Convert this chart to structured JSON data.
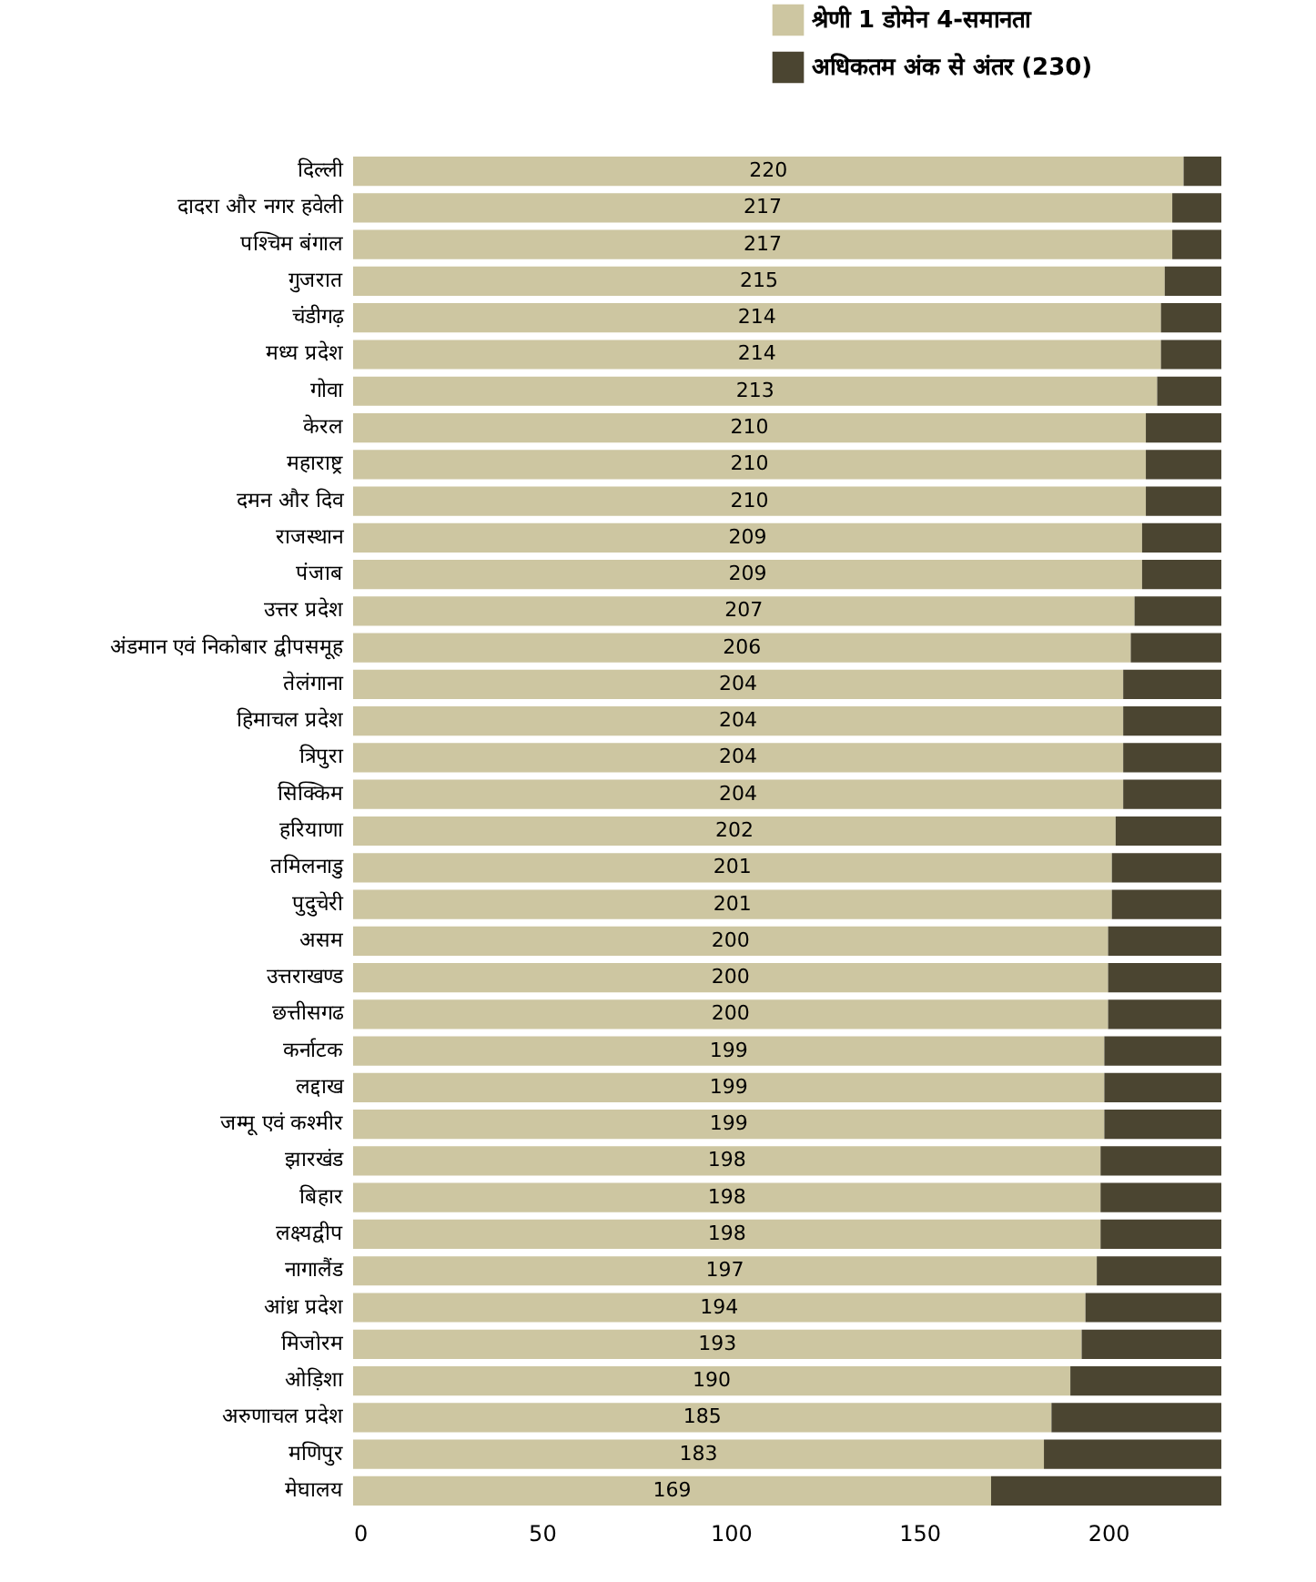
{
  "chart_data": {
    "type": "bar",
    "orientation": "horizontal",
    "stacked": true,
    "legend": "top right",
    "categories": [
      "दिल्ली",
      "दादरा और नगर हवेली",
      "पश्चिम बंगाल",
      "गुजरात",
      "चंडीगढ़",
      "मध्य प्रदेश",
      "गोवा",
      "केरल",
      "महाराष्ट्र",
      "दमन और दिव",
      "राजस्थान",
      "पंजाब",
      "उत्तर प्रदेश",
      "अंडमान एवं निकोबार द्वीपसमूह",
      "तेलंगाना",
      "हिमाचल प्रदेश",
      "त्रिपुरा",
      "सिक्किम",
      "हरियाणा",
      "तमिलनाडु",
      "पुदुचेरी",
      "असम",
      "उत्तराखण्ड",
      "छत्तीसगढ",
      "कर्नाटक",
      "लद्दाख",
      "जम्मू एवं कश्मीर",
      "झारखंड",
      "बिहार",
      "लक्ष्यद्वीप",
      "नागालैंड",
      "आंध्र प्रदेश",
      "मिजोरम",
      "ओड़िशा",
      "अरुणाचल प्रदेश",
      "मणिपुर",
      "मेघालय"
    ],
    "series": [
      {
        "name": "श्रेणी 1 डोमेन 4-समानता",
        "color": "#cdc6a1",
        "values": [
          220,
          217,
          217,
          215,
          214,
          214,
          213,
          210,
          210,
          210,
          209,
          209,
          207,
          206,
          204,
          204,
          204,
          204,
          202,
          201,
          201,
          200,
          200,
          200,
          199,
          199,
          199,
          198,
          198,
          198,
          197,
          194,
          193,
          190,
          185,
          183,
          169
        ],
        "value_labels": [
          "220",
          "217",
          "217",
          "215",
          "214",
          "214",
          "213",
          "210",
          "210",
          "210",
          "209",
          "209",
          "207",
          "206",
          "204",
          "204",
          "204",
          "204",
          "202",
          "201",
          "201",
          "200",
          "200",
          "200",
          "199",
          "199",
          "199",
          "198",
          "198",
          "198",
          "197",
          "194",
          "193",
          "190",
          "185",
          "183",
          "169"
        ]
      },
      {
        "name": "अधिकतम अंक से अंतर (230)",
        "color": "#4b4531",
        "values": [
          10,
          13,
          13,
          15,
          16,
          16,
          17,
          20,
          20,
          20,
          21,
          21,
          23,
          24,
          26,
          26,
          26,
          26,
          28,
          29,
          29,
          30,
          30,
          30,
          31,
          31,
          31,
          32,
          32,
          32,
          33,
          36,
          37,
          40,
          45,
          47,
          61
        ]
      }
    ],
    "xlim": [
      0,
      230
    ],
    "xticks": [
      0,
      50,
      100,
      150,
      200
    ]
  }
}
